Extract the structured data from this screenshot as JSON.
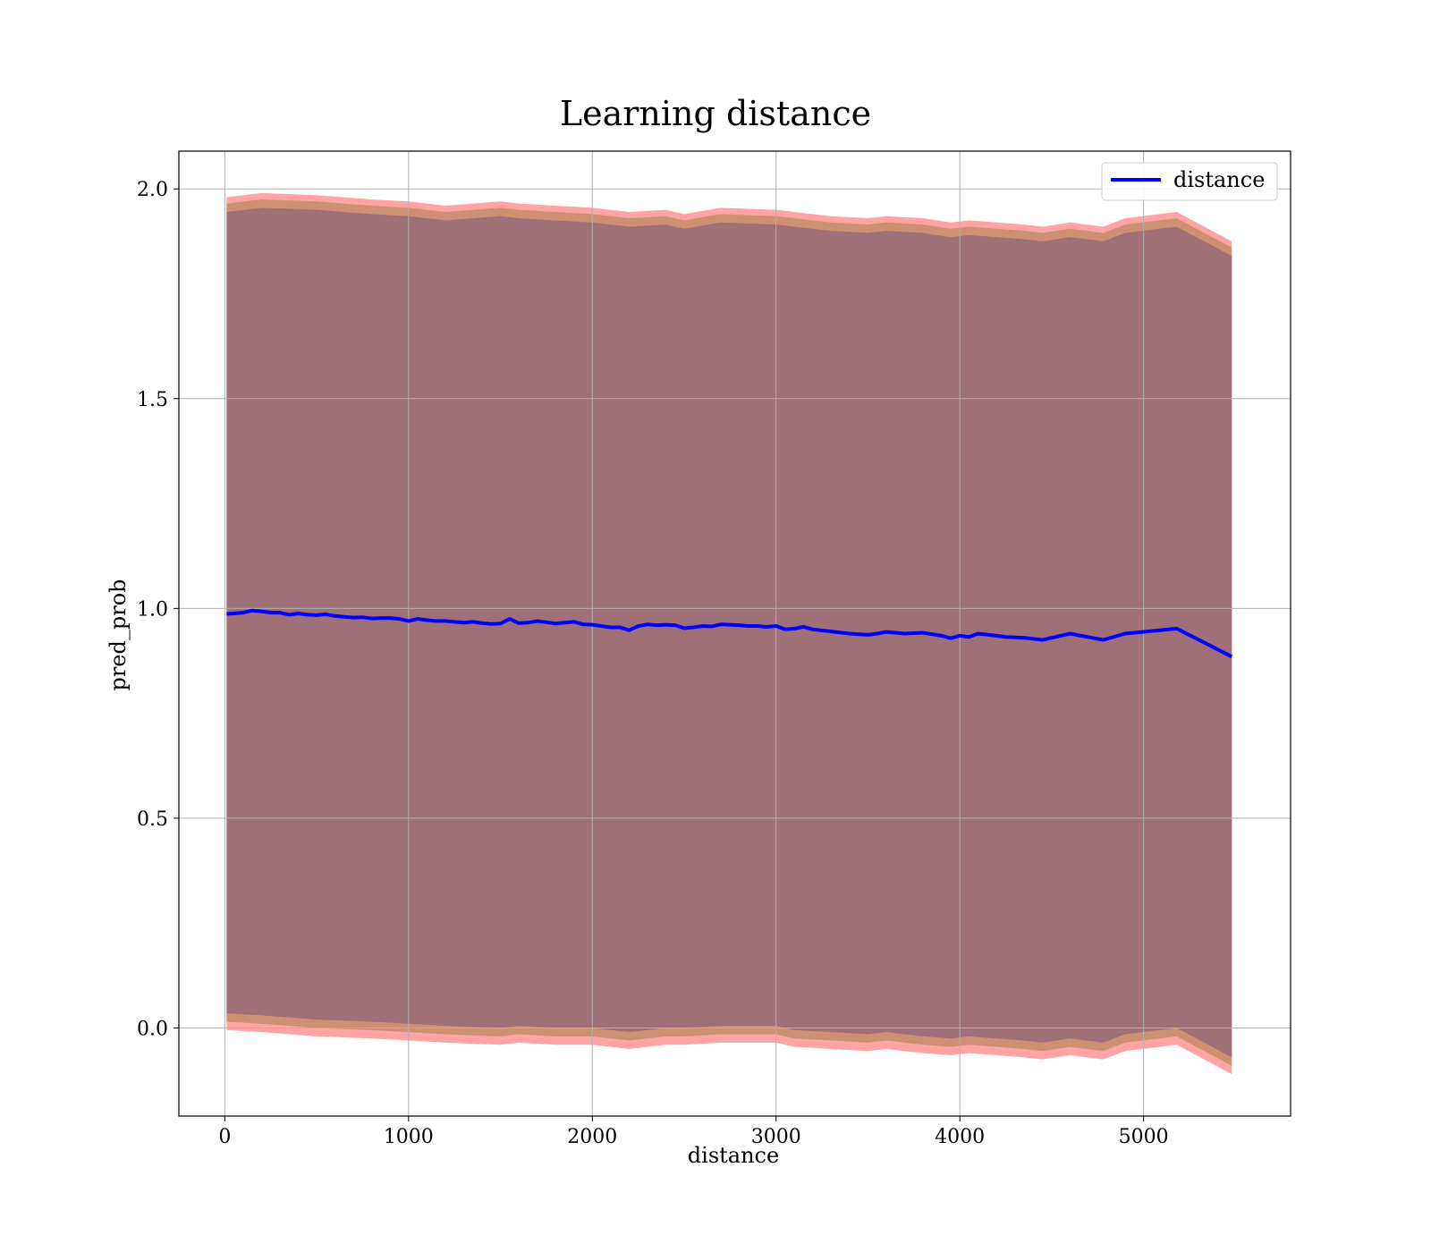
{
  "chart_data": {
    "type": "line",
    "title": "Learning distance",
    "xlabel": "distance",
    "ylabel": "pred_prob",
    "xlim": [
      -250,
      5800
    ],
    "ylim": [
      -0.21,
      2.09
    ],
    "xticks": [
      0,
      1000,
      2000,
      3000,
      4000,
      5000
    ],
    "yticks": [
      0.0,
      0.5,
      1.0,
      1.5,
      2.0
    ],
    "xtick_labels": [
      "0",
      "1000",
      "2000",
      "3000",
      "4000",
      "5000"
    ],
    "ytick_labels": [
      "0.0",
      "0.5",
      "1.0",
      "1.5",
      "2.0"
    ],
    "grid": true,
    "legend_position": "top-right",
    "colors": {
      "line": "#0000ff",
      "band_outer": "#ff9999",
      "band_middle": "#c89070",
      "band_inner": "#a07078"
    },
    "series": [
      {
        "name": "distance",
        "x": [
          10,
          50,
          100,
          150,
          200,
          250,
          300,
          350,
          400,
          450,
          500,
          550,
          600,
          650,
          700,
          750,
          800,
          850,
          900,
          950,
          1000,
          1050,
          1100,
          1150,
          1200,
          1250,
          1300,
          1350,
          1400,
          1450,
          1500,
          1550,
          1600,
          1650,
          1700,
          1750,
          1800,
          1850,
          1900,
          1950,
          2000,
          2050,
          2100,
          2150,
          2200,
          2250,
          2300,
          2350,
          2400,
          2450,
          2500,
          2550,
          2600,
          2650,
          2700,
          2750,
          2800,
          2850,
          2900,
          2950,
          3000,
          3050,
          3100,
          3150,
          3200,
          3300,
          3400,
          3500,
          3550,
          3600,
          3700,
          3800,
          3900,
          3950,
          4000,
          4050,
          4100,
          4200,
          4250,
          4350,
          4450,
          4600,
          4780,
          4900,
          5180,
          5480
        ],
        "values": [
          0.987,
          0.988,
          0.99,
          0.995,
          0.993,
          0.99,
          0.99,
          0.985,
          0.988,
          0.985,
          0.984,
          0.986,
          0.982,
          0.98,
          0.978,
          0.979,
          0.976,
          0.977,
          0.977,
          0.975,
          0.97,
          0.975,
          0.972,
          0.97,
          0.97,
          0.968,
          0.966,
          0.968,
          0.965,
          0.963,
          0.964,
          0.975,
          0.965,
          0.966,
          0.97,
          0.967,
          0.964,
          0.966,
          0.968,
          0.962,
          0.961,
          0.958,
          0.955,
          0.955,
          0.948,
          0.958,
          0.962,
          0.96,
          0.961,
          0.96,
          0.953,
          0.955,
          0.958,
          0.957,
          0.962,
          0.961,
          0.96,
          0.958,
          0.958,
          0.956,
          0.958,
          0.95,
          0.952,
          0.956,
          0.95,
          0.945,
          0.94,
          0.937,
          0.94,
          0.944,
          0.94,
          0.942,
          0.935,
          0.929,
          0.935,
          0.932,
          0.94,
          0.935,
          0.932,
          0.93,
          0.925,
          0.94,
          0.925,
          0.94,
          0.952,
          0.885
        ]
      }
    ],
    "bands": [
      {
        "name": "outer",
        "x": [
          10,
          200,
          500,
          800,
          1000,
          1200,
          1500,
          1600,
          1800,
          2000,
          2200,
          2400,
          2500,
          2700,
          3000,
          3100,
          3300,
          3500,
          3600,
          3800,
          3950,
          4050,
          4200,
          4350,
          4450,
          4600,
          4780,
          4900,
          5180,
          5480
        ],
        "upper": [
          1.98,
          1.99,
          1.985,
          1.975,
          1.97,
          1.96,
          1.97,
          1.965,
          1.96,
          1.955,
          1.945,
          1.95,
          1.94,
          1.955,
          1.95,
          1.945,
          1.935,
          1.93,
          1.935,
          1.93,
          1.92,
          1.925,
          1.92,
          1.915,
          1.91,
          1.92,
          1.91,
          1.93,
          1.945,
          1.875
        ],
        "lower": [
          -0.005,
          -0.01,
          -0.02,
          -0.025,
          -0.03,
          -0.035,
          -0.04,
          -0.035,
          -0.04,
          -0.04,
          -0.05,
          -0.04,
          -0.04,
          -0.035,
          -0.035,
          -0.045,
          -0.05,
          -0.055,
          -0.05,
          -0.06,
          -0.065,
          -0.06,
          -0.065,
          -0.07,
          -0.075,
          -0.065,
          -0.075,
          -0.055,
          -0.04,
          -0.11
        ]
      },
      {
        "name": "middle",
        "x": [
          10,
          200,
          500,
          800,
          1000,
          1200,
          1500,
          1600,
          1800,
          2000,
          2200,
          2400,
          2500,
          2700,
          3000,
          3100,
          3300,
          3500,
          3600,
          3800,
          3950,
          4050,
          4200,
          4350,
          4450,
          4600,
          4780,
          4900,
          5180,
          5480
        ],
        "upper": [
          1.965,
          1.975,
          1.97,
          1.96,
          1.955,
          1.945,
          1.955,
          1.95,
          1.945,
          1.94,
          1.93,
          1.935,
          1.925,
          1.94,
          1.935,
          1.93,
          1.92,
          1.915,
          1.92,
          1.915,
          1.905,
          1.91,
          1.905,
          1.9,
          1.895,
          1.905,
          1.895,
          1.915,
          1.93,
          1.86
        ],
        "lower": [
          0.015,
          0.01,
          0.0,
          -0.005,
          -0.01,
          -0.015,
          -0.02,
          -0.015,
          -0.02,
          -0.02,
          -0.03,
          -0.02,
          -0.02,
          -0.015,
          -0.015,
          -0.025,
          -0.03,
          -0.035,
          -0.03,
          -0.04,
          -0.045,
          -0.04,
          -0.045,
          -0.05,
          -0.055,
          -0.045,
          -0.055,
          -0.035,
          -0.02,
          -0.09
        ]
      },
      {
        "name": "inner",
        "x": [
          10,
          200,
          500,
          800,
          1000,
          1200,
          1500,
          1600,
          1800,
          2000,
          2200,
          2400,
          2500,
          2700,
          3000,
          3100,
          3300,
          3500,
          3600,
          3800,
          3950,
          4050,
          4200,
          4350,
          4450,
          4600,
          4780,
          4900,
          5180,
          5480
        ],
        "upper": [
          1.945,
          1.955,
          1.95,
          1.94,
          1.935,
          1.925,
          1.935,
          1.93,
          1.925,
          1.92,
          1.91,
          1.915,
          1.905,
          1.92,
          1.915,
          1.91,
          1.9,
          1.895,
          1.9,
          1.895,
          1.885,
          1.89,
          1.885,
          1.88,
          1.875,
          1.885,
          1.875,
          1.895,
          1.91,
          1.84
        ],
        "lower": [
          0.035,
          0.03,
          0.02,
          0.015,
          0.01,
          0.005,
          0.0,
          0.005,
          0.0,
          0.0,
          -0.01,
          0.0,
          0.0,
          0.005,
          0.005,
          -0.005,
          -0.01,
          -0.015,
          -0.01,
          -0.02,
          -0.025,
          -0.02,
          -0.025,
          -0.03,
          -0.035,
          -0.025,
          -0.035,
          -0.015,
          0.0,
          -0.07
        ]
      }
    ]
  }
}
